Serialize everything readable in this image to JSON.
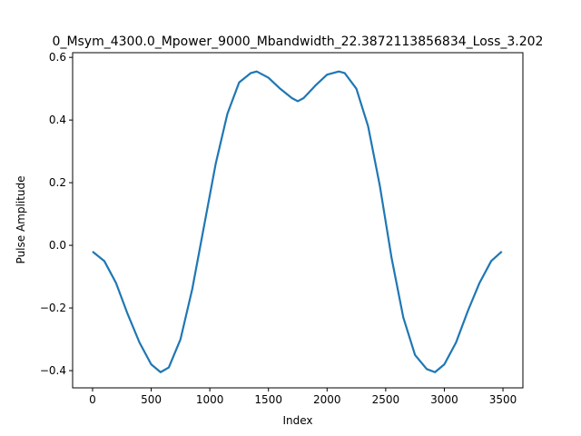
{
  "chart_data": {
    "type": "line",
    "title": "0_Msym_4300.0_Mpower_9000_Mbandwidth_22.3872113856834_Loss_3.202",
    "xlabel": "Index",
    "ylabel": "Pulse Amplitude",
    "xlim": [
      -170,
      3670
    ],
    "ylim": [
      -0.455,
      0.615
    ],
    "xticks": [
      0,
      500,
      1000,
      1500,
      2000,
      2500,
      3000,
      3500
    ],
    "xtick_labels": [
      "0",
      "500",
      "1000",
      "1500",
      "2000",
      "2500",
      "3000",
      "3500"
    ],
    "yticks": [
      -0.4,
      -0.2,
      0.0,
      0.2,
      0.4,
      0.6
    ],
    "ytick_labels": [
      "−0.4",
      "−0.2",
      "0.0",
      "0.2",
      "0.4",
      "0.6"
    ],
    "grid": false,
    "series": [
      {
        "color": "#1f77b4",
        "x": [
          0,
          100,
          200,
          300,
          400,
          500,
          580,
          650,
          750,
          850,
          950,
          1050,
          1150,
          1250,
          1350,
          1400,
          1500,
          1600,
          1700,
          1750,
          1800,
          1900,
          2000,
          2100,
          2150,
          2250,
          2350,
          2450,
          2550,
          2650,
          2750,
          2850,
          2920,
          3000,
          3100,
          3200,
          3300,
          3400,
          3490
        ],
        "y": [
          -0.02,
          -0.05,
          -0.12,
          -0.22,
          -0.31,
          -0.38,
          -0.405,
          -0.39,
          -0.3,
          -0.14,
          0.06,
          0.26,
          0.42,
          0.52,
          0.55,
          0.555,
          0.535,
          0.5,
          0.47,
          0.46,
          0.47,
          0.51,
          0.545,
          0.555,
          0.55,
          0.5,
          0.38,
          0.19,
          -0.04,
          -0.23,
          -0.35,
          -0.395,
          -0.405,
          -0.38,
          -0.31,
          -0.21,
          -0.12,
          -0.05,
          -0.02
        ]
      }
    ]
  }
}
